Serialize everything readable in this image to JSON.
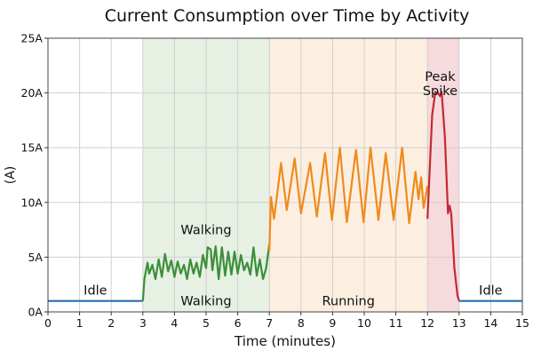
{
  "chart_data": {
    "type": "line",
    "title": "Current Consumption over Time by Activity",
    "xlabel": "Time (minutes)",
    "ylabel": "(A)",
    "xlim": [
      0,
      15
    ],
    "ylim": [
      0,
      25
    ],
    "grid": true,
    "x_ticks": [
      "0",
      "1",
      "2",
      "3",
      "4",
      "5",
      "6",
      "7",
      "8",
      "9",
      "10",
      "11",
      "12",
      "13",
      "14",
      "15"
    ],
    "y_ticks": [
      "0A",
      "5A",
      "10A",
      "15A",
      "20A",
      "25A"
    ],
    "regions": [
      {
        "label": "Walking",
        "x": [
          3,
          7
        ],
        "color": "#e6f1e3"
      },
      {
        "label": "Running",
        "x": [
          7,
          12
        ],
        "color": "#fcefe0"
      },
      {
        "label": "Peak Spike",
        "x": [
          12,
          13
        ],
        "color": "#f7dadd"
      }
    ],
    "annotations": [
      {
        "text": "Idle",
        "x": 1.5,
        "y": 2
      },
      {
        "text": "Walking",
        "x": 5,
        "y": 1
      },
      {
        "text": "Walking",
        "x": 5,
        "y": 7.5
      },
      {
        "text": "Running",
        "x": 9.5,
        "y": 1
      },
      {
        "text": "Idle",
        "x": 14,
        "y": 2
      },
      {
        "text": "Peak",
        "x": 12.4,
        "y": 21.5
      },
      {
        "text": "Spike",
        "x": 12.4,
        "y": 20.2
      }
    ],
    "series": [
      {
        "segment": "idle-start",
        "color": "#2a6db0",
        "x": [
          0,
          3.0
        ],
        "y": [
          1,
          1
        ]
      },
      {
        "segment": "walking",
        "color": "#3c8f3a",
        "x": [
          3.0,
          3.05,
          3.1,
          3.15,
          3.2,
          3.3,
          3.4,
          3.5,
          3.6,
          3.7,
          3.8,
          3.9,
          4.0,
          4.1,
          4.2,
          4.3,
          4.4,
          4.5,
          4.6,
          4.7,
          4.8,
          4.9,
          5.0,
          5.05,
          5.15,
          5.2,
          5.3,
          5.4,
          5.5,
          5.6,
          5.7,
          5.8,
          5.9,
          6.0,
          6.1,
          6.2,
          6.3,
          6.4,
          6.5,
          6.6,
          6.7,
          6.8,
          6.9,
          7.0
        ],
        "y": [
          1,
          3.0,
          3.8,
          4.5,
          3.5,
          4.3,
          3.0,
          4.8,
          3.2,
          5.3,
          3.7,
          4.7,
          3.2,
          4.6,
          3.5,
          4.3,
          3.0,
          4.8,
          3.5,
          4.5,
          3.2,
          5.2,
          4.0,
          5.9,
          5.7,
          3.8,
          6.0,
          3.0,
          5.9,
          3.3,
          5.5,
          3.4,
          5.5,
          3.5,
          5.2,
          3.8,
          4.5,
          3.4,
          5.9,
          3.3,
          4.8,
          3.0,
          4.0,
          6.2
        ]
      },
      {
        "segment": "running",
        "color": "#f08a1c",
        "x": [
          7.0,
          7.05,
          7.15,
          7.37,
          7.55,
          7.8,
          8.0,
          8.29,
          8.5,
          8.76,
          8.98,
          9.23,
          9.45,
          9.74,
          9.98,
          10.2,
          10.45,
          10.68,
          10.93,
          11.2,
          11.42,
          11.62,
          11.72,
          11.8,
          11.88,
          12.0
        ],
        "y": [
          5.5,
          10.5,
          8.5,
          13.6,
          9.3,
          14.0,
          9.0,
          13.6,
          8.7,
          14.5,
          8.4,
          15.0,
          8.2,
          14.8,
          8.2,
          15.0,
          8.4,
          14.5,
          8.4,
          15.0,
          8.1,
          12.8,
          10.3,
          12.3,
          9.5,
          11.5
        ]
      },
      {
        "segment": "peak-spike",
        "color": "#c42a30",
        "x": [
          12.0,
          12.07,
          12.15,
          12.25,
          12.33,
          12.4,
          12.45,
          12.55,
          12.65,
          12.7,
          12.75,
          12.85,
          12.95,
          13.0
        ],
        "y": [
          8.5,
          13,
          18,
          20.1,
          20.0,
          19.7,
          20.1,
          16,
          9.0,
          9.7,
          9.0,
          4,
          1.5,
          1
        ]
      },
      {
        "segment": "idle-end",
        "color": "#2a6db0",
        "x": [
          13.0,
          15
        ],
        "y": [
          1,
          1
        ]
      }
    ]
  }
}
